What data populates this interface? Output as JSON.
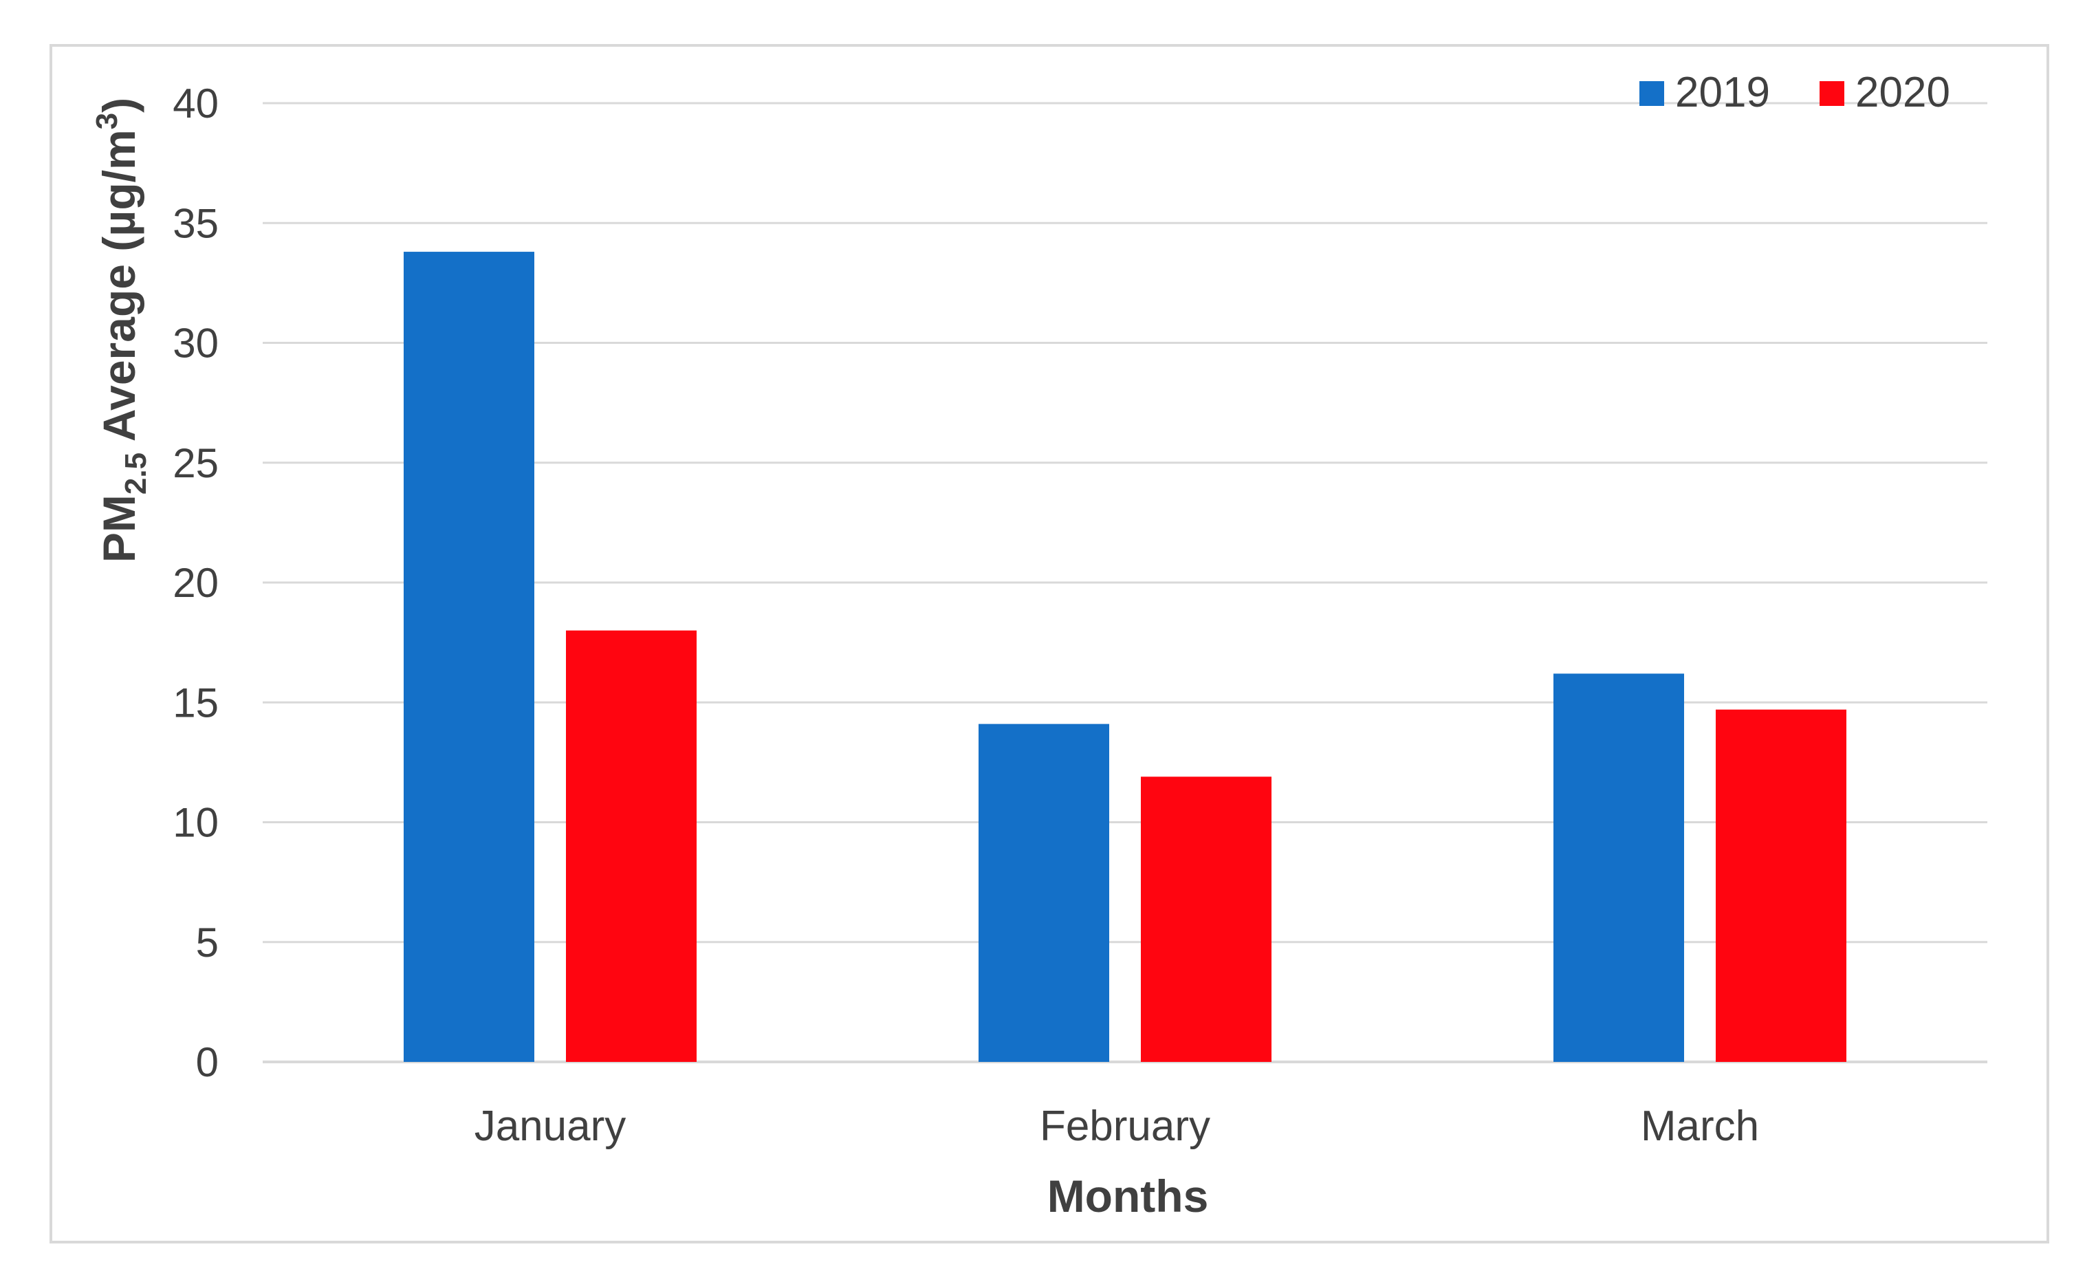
{
  "chart_data": {
    "type": "bar",
    "categories": [
      "January",
      "February",
      "March"
    ],
    "series": [
      {
        "name": "2019",
        "color": "#1470C8",
        "values": [
          33.8,
          14.1,
          16.2
        ]
      },
      {
        "name": "2020",
        "color": "#FF0510",
        "values": [
          18.0,
          11.9,
          14.7
        ]
      }
    ],
    "title": "",
    "xlabel": "Months",
    "ylabel": {
      "prefix": "PM",
      "subscript": "2.5",
      "middle": " Average (µg/m",
      "superscript": "3",
      "suffix": ")"
    },
    "ylim": [
      0,
      40
    ],
    "yticks": [
      "0",
      "5",
      "10",
      "15",
      "20",
      "25",
      "30",
      "35",
      "40"
    ],
    "grid": true,
    "gridline_color": "#d9d9d9",
    "legend_position": "top-right"
  }
}
